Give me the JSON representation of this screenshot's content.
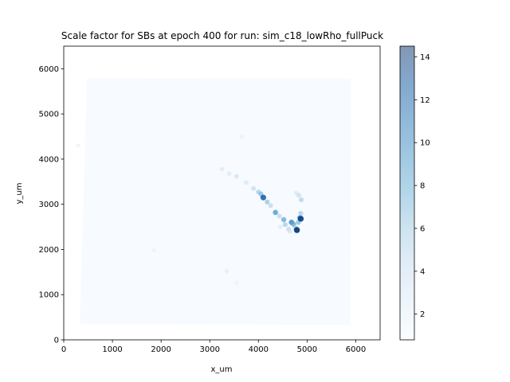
{
  "chart_data": {
    "type": "scatter",
    "title": "Scale factor for SBs at epoch 400 for run: sim_c18_lowRho_fullPuck",
    "xlabel": "x_um",
    "ylabel": "y_um",
    "xlim": [
      0,
      6500
    ],
    "ylim": [
      0,
      6500
    ],
    "x_ticks": [
      0,
      1000,
      2000,
      3000,
      4000,
      5000,
      6000
    ],
    "y_ticks": [
      0,
      1000,
      2000,
      3000,
      4000,
      5000,
      6000
    ],
    "colorbar": {
      "range": [
        0.8,
        14.5
      ],
      "ticks": [
        2,
        4,
        6,
        8,
        10,
        12,
        14
      ],
      "colormap": "Blues",
      "alpha": 0.5
    },
    "puck_region": {
      "corners": [
        [
          480,
          5800
        ],
        [
          5900,
          5780
        ],
        [
          5880,
          330
        ],
        [
          330,
          360
        ]
      ],
      "value": 1.3
    },
    "points": [
      {
        "x": 3250,
        "y": 3780,
        "value": 3.0
      },
      {
        "x": 3400,
        "y": 3680,
        "value": 3.2
      },
      {
        "x": 3550,
        "y": 3620,
        "value": 4.0
      },
      {
        "x": 3650,
        "y": 4500,
        "value": 2.2
      },
      {
        "x": 3750,
        "y": 3480,
        "value": 3.5
      },
      {
        "x": 3900,
        "y": 3350,
        "value": 4.5
      },
      {
        "x": 4000,
        "y": 3270,
        "value": 6.0
      },
      {
        "x": 4050,
        "y": 3230,
        "value": 7.0
      },
      {
        "x": 4100,
        "y": 3150,
        "value": 12.0
      },
      {
        "x": 4180,
        "y": 3050,
        "value": 6.5
      },
      {
        "x": 4250,
        "y": 2970,
        "value": 5.0
      },
      {
        "x": 4350,
        "y": 2820,
        "value": 9.0
      },
      {
        "x": 4430,
        "y": 2740,
        "value": 5.0
      },
      {
        "x": 4520,
        "y": 2660,
        "value": 8.0
      },
      {
        "x": 4550,
        "y": 2550,
        "value": 6.0
      },
      {
        "x": 4620,
        "y": 2450,
        "value": 5.0
      },
      {
        "x": 4680,
        "y": 2600,
        "value": 10.0
      },
      {
        "x": 4720,
        "y": 2560,
        "value": 8.0
      },
      {
        "x": 4760,
        "y": 2480,
        "value": 6.0
      },
      {
        "x": 4790,
        "y": 2430,
        "value": 14.0
      },
      {
        "x": 4820,
        "y": 2600,
        "value": 7.0
      },
      {
        "x": 4850,
        "y": 2700,
        "value": 9.0
      },
      {
        "x": 4870,
        "y": 2680,
        "value": 13.5
      },
      {
        "x": 4870,
        "y": 2800,
        "value": 6.0
      },
      {
        "x": 4880,
        "y": 3100,
        "value": 5.5
      },
      {
        "x": 4830,
        "y": 3200,
        "value": 4.5
      },
      {
        "x": 4780,
        "y": 3250,
        "value": 3.5
      },
      {
        "x": 4650,
        "y": 2400,
        "value": 3.5
      },
      {
        "x": 4450,
        "y": 2500,
        "value": 3.0
      },
      {
        "x": 3350,
        "y": 1520,
        "value": 2.5
      },
      {
        "x": 1850,
        "y": 1980,
        "value": 2.0
      },
      {
        "x": 3550,
        "y": 1260,
        "value": 2.0
      },
      {
        "x": 300,
        "y": 4300,
        "value": 2.0
      }
    ]
  }
}
